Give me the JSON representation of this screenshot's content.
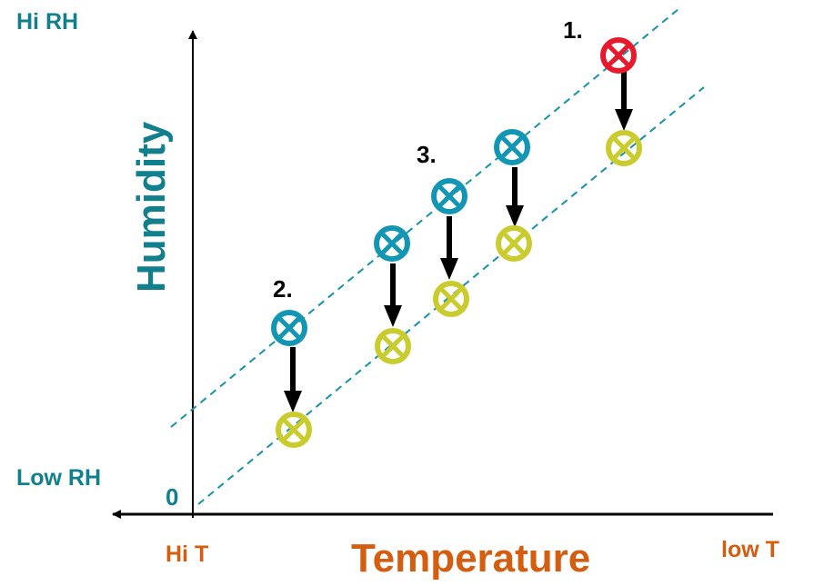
{
  "labels": {
    "hi_rh": "Hi RH",
    "low_rh": "Low RH",
    "origin": "0",
    "hi_t": "Hi T",
    "low_t": "low T",
    "y_axis_title": "Humidity",
    "x_axis_title": "Temperature"
  },
  "point_labels": {
    "one": "1.",
    "two": "2.",
    "three": "3."
  },
  "colors": {
    "axis_label": "#127f8c",
    "temperature_label": "#d45d0f",
    "upper_marker": "#1396b3",
    "lower_marker": "#c9cc2c",
    "highlight_marker": "#e8192c",
    "trend_line": "#1592a8"
  },
  "icons": {
    "marker": "circled-x-icon",
    "arrow": "down-arrow-icon"
  }
}
